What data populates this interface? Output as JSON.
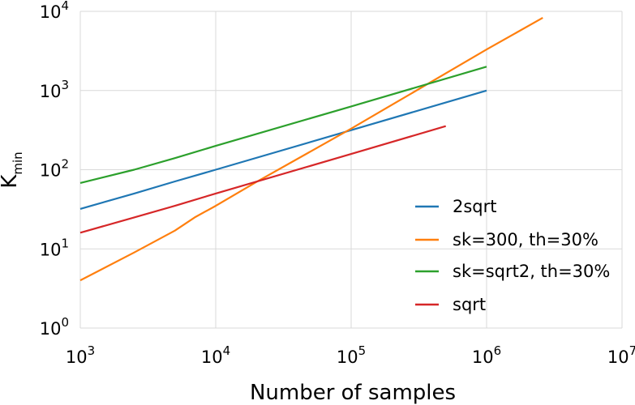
{
  "chart_data": {
    "type": "line",
    "xscale": "log",
    "yscale": "log",
    "xlabel": "Number of samples",
    "ylabel": "K",
    "ylabel_sub": "min",
    "xlim": [
      1000,
      10000000
    ],
    "ylim": [
      1,
      10000
    ],
    "grid": true,
    "legend_position": "lower-right",
    "x_ticks": [
      {
        "base": "10",
        "exp": "3"
      },
      {
        "base": "10",
        "exp": "4"
      },
      {
        "base": "10",
        "exp": "5"
      },
      {
        "base": "10",
        "exp": "6"
      },
      {
        "base": "10",
        "exp": "7"
      }
    ],
    "y_ticks": [
      {
        "base": "10",
        "exp": "0"
      },
      {
        "base": "10",
        "exp": "1"
      },
      {
        "base": "10",
        "exp": "2"
      },
      {
        "base": "10",
        "exp": "3"
      },
      {
        "base": "10",
        "exp": "4"
      }
    ],
    "series": [
      {
        "name": "2sqrt",
        "color": "#1f77b4",
        "x": [
          1000,
          2500,
          5000,
          10000,
          100000,
          1000000
        ],
        "y": [
          32,
          50,
          71,
          100,
          316,
          1000
        ]
      },
      {
        "name": "sk=300, th=30%",
        "color": "#ff7f0e",
        "x": [
          1000,
          2500,
          5000,
          7000,
          10000,
          20000,
          100000,
          1000000,
          2600000
        ],
        "y": [
          4,
          9,
          17,
          25,
          35,
          70,
          330,
          3300,
          8300
        ]
      },
      {
        "name": "sk=sqrt2, th=30%",
        "color": "#2ca02c",
        "x": [
          1000,
          2500,
          5000,
          10000,
          100000,
          1000000
        ],
        "y": [
          68,
          100,
          140,
          200,
          630,
          2000
        ]
      },
      {
        "name": "sqrt",
        "color": "#d62728",
        "x": [
          1000,
          2500,
          5000,
          10000,
          100000,
          500000
        ],
        "y": [
          16,
          25,
          35,
          50,
          158,
          355
        ]
      }
    ]
  }
}
